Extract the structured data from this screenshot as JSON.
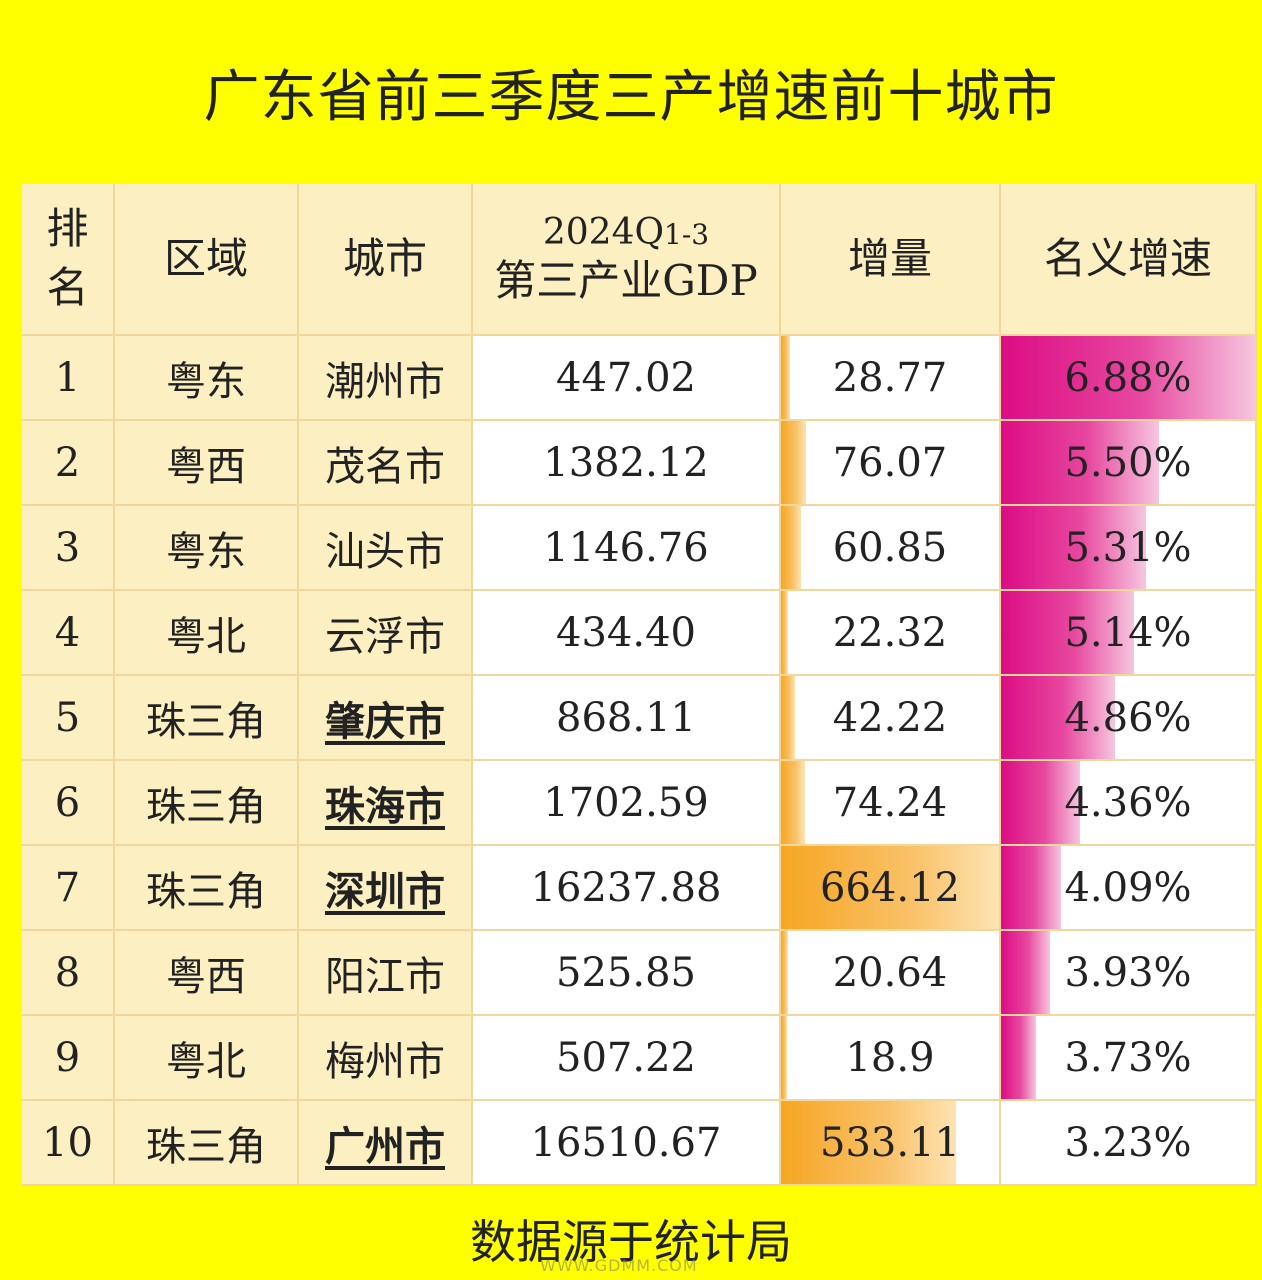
{
  "title": "广东省前三季度三产增速前十城市",
  "footer": "数据源于统计局",
  "headers": {
    "rank": "排名",
    "region": "区域",
    "city": "城市",
    "gdp_line1": "2024Q",
    "gdp_line1_sub": "1-3",
    "gdp_line2": "第三产业GDP",
    "increase": "增量",
    "rate": "名义增速"
  },
  "colors": {
    "background": "#ffff00",
    "header_fill": "#fcefc2",
    "increase_bar": "#f6a623",
    "rate_bar": "#dc0c84"
  },
  "chart_data": {
    "type": "table",
    "title": "广东省前三季度三产增速前十城市",
    "columns": [
      "排名",
      "区域",
      "城市",
      "2024Q1-3第三产业GDP",
      "增量",
      "名义增速"
    ],
    "rows": [
      {
        "rank": "1",
        "region": "粤东",
        "city": "潮州市",
        "gdp": "447.02",
        "increase": "28.77",
        "rate": "6.88%",
        "underlined": false,
        "increase_val": 28.77,
        "rate_val": 6.88
      },
      {
        "rank": "2",
        "region": "粤西",
        "city": "茂名市",
        "gdp": "1382.12",
        "increase": "76.07",
        "rate": "5.50%",
        "underlined": false,
        "increase_val": 76.07,
        "rate_val": 5.5
      },
      {
        "rank": "3",
        "region": "粤东",
        "city": "汕头市",
        "gdp": "1146.76",
        "increase": "60.85",
        "rate": "5.31%",
        "underlined": false,
        "increase_val": 60.85,
        "rate_val": 5.31
      },
      {
        "rank": "4",
        "region": "粤北",
        "city": "云浮市",
        "gdp": "434.40",
        "increase": "22.32",
        "rate": "5.14%",
        "underlined": false,
        "increase_val": 22.32,
        "rate_val": 5.14
      },
      {
        "rank": "5",
        "region": "珠三角",
        "city": "肇庆市",
        "gdp": "868.11",
        "increase": "42.22",
        "rate": "4.86%",
        "underlined": true,
        "increase_val": 42.22,
        "rate_val": 4.86
      },
      {
        "rank": "6",
        "region": "珠三角",
        "city": "珠海市",
        "gdp": "1702.59",
        "increase": "74.24",
        "rate": "4.36%",
        "underlined": true,
        "increase_val": 74.24,
        "rate_val": 4.36
      },
      {
        "rank": "7",
        "region": "珠三角",
        "city": "深圳市",
        "gdp": "16237.88",
        "increase": "664.12",
        "rate": "4.09%",
        "underlined": true,
        "increase_val": 664.12,
        "rate_val": 4.09
      },
      {
        "rank": "8",
        "region": "粤西",
        "city": "阳江市",
        "gdp": "525.85",
        "increase": "20.64",
        "rate": "3.93%",
        "underlined": false,
        "increase_val": 20.64,
        "rate_val": 3.93
      },
      {
        "rank": "9",
        "region": "粤北",
        "city": "梅州市",
        "gdp": "507.22",
        "increase": "18.9",
        "rate": "3.73%",
        "underlined": false,
        "increase_val": 18.9,
        "rate_val": 3.73
      },
      {
        "rank": "10",
        "region": "珠三角",
        "city": "广州市",
        "gdp": "16510.67",
        "increase": "533.11",
        "rate": "3.23%",
        "underlined": true,
        "increase_val": 533.11,
        "rate_val": 3.23
      }
    ],
    "increase_scale": {
      "min": 0,
      "max": 664.12
    },
    "rate_scale": {
      "min": 3.23,
      "max": 6.88
    }
  }
}
